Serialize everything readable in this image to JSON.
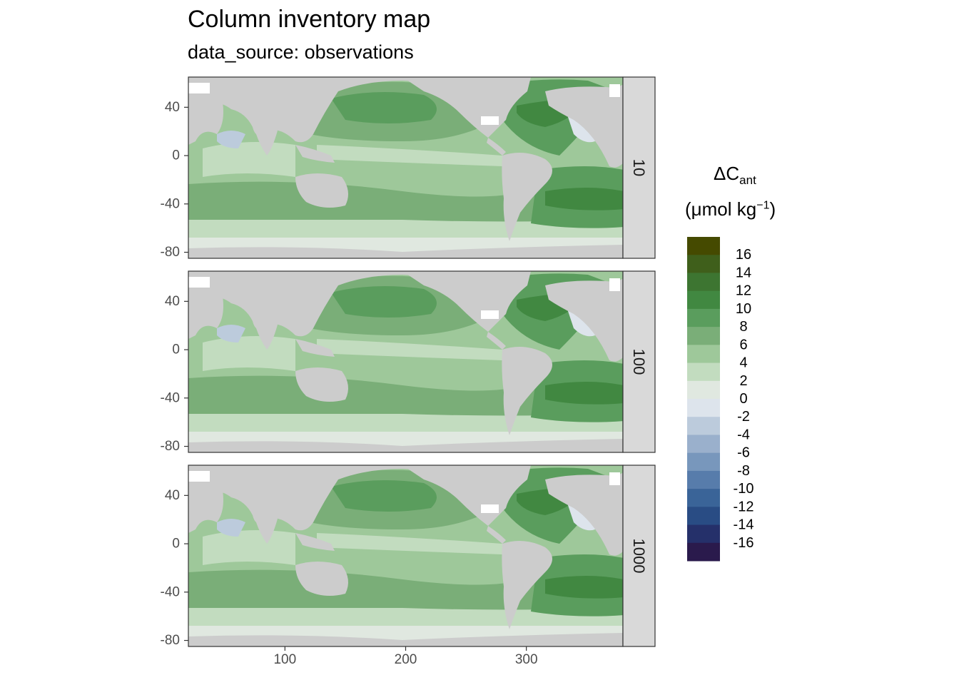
{
  "chart_data": {
    "type": "heatmap",
    "title": "Column inventory map",
    "subtitle": "data_source: observations",
    "facet_labels": [
      "10",
      "100",
      "1000"
    ],
    "x_ticks": [
      100,
      200,
      300
    ],
    "y_ticks": [
      40,
      0,
      -40,
      -80
    ],
    "xlim": [
      20,
      380
    ],
    "ylim": [
      -85,
      65
    ],
    "legend": {
      "title": "ΔC",
      "title_sub": "ant",
      "units_prefix": "(μmol kg",
      "units_sup": "−1",
      "units_suffix": ")",
      "placement": "right",
      "tick_labels": [
        "16",
        "14",
        "12",
        "10",
        "8",
        "6",
        "4",
        "2",
        "0",
        "-2",
        "-4",
        "-6",
        "-8",
        "-10",
        "-12",
        "-14",
        "-16"
      ],
      "colors": [
        "#454a00",
        "#3f5f1b",
        "#3d7531",
        "#418841",
        "#5a9d5d",
        "#7aae78",
        "#9ec89a",
        "#c2dcbf",
        "#e0e8e0",
        "#dde4ec",
        "#bccbdc",
        "#9ab0cc",
        "#7897bc",
        "#577cab",
        "#3a6498",
        "#294c84",
        "#25306a",
        "#2a1a4c"
      ]
    },
    "land_color": "#cccccc",
    "panel_background": "#ffffff"
  }
}
